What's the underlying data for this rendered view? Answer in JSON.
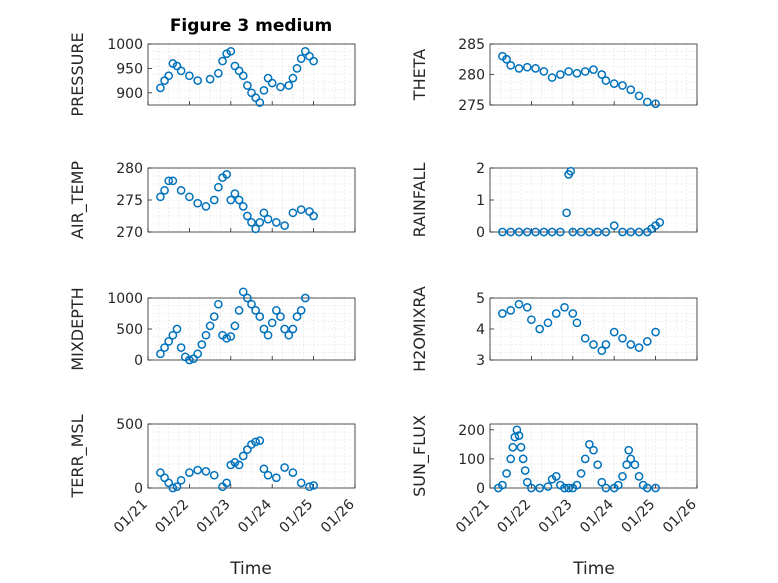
{
  "title": "Figure 3 medium",
  "colors": {
    "marker": "#0072BD",
    "axis": "#262626",
    "grid": "#d0d0d0"
  },
  "chart_data": [
    {
      "type": "scatter",
      "title": "Figure 3 medium",
      "ylabel": "PRESSURE",
      "ylim": [
        875,
        1000
      ],
      "yticks": [
        900,
        950,
        1000
      ],
      "xlim": [
        "01/21",
        "01/26"
      ],
      "xticks": [
        "01/21",
        "01/22",
        "01/23",
        "01/24",
        "01/25",
        "01/26"
      ],
      "grid": true,
      "series": [
        {
          "values": [
            [
              21.3,
              910
            ],
            [
              21.4,
              925
            ],
            [
              21.5,
              935
            ],
            [
              21.6,
              960
            ],
            [
              21.7,
              955
            ],
            [
              21.8,
              945
            ],
            [
              22.0,
              935
            ],
            [
              22.2,
              925
            ],
            [
              22.5,
              928
            ],
            [
              22.7,
              940
            ],
            [
              22.8,
              965
            ],
            [
              22.9,
              980
            ],
            [
              23.0,
              985
            ],
            [
              23.1,
              955
            ],
            [
              23.2,
              945
            ],
            [
              23.3,
              935
            ],
            [
              23.4,
              915
            ],
            [
              23.5,
              900
            ],
            [
              23.6,
              890
            ],
            [
              23.7,
              880
            ],
            [
              23.8,
              905
            ],
            [
              23.9,
              930
            ],
            [
              24.0,
              920
            ],
            [
              24.2,
              912
            ],
            [
              24.4,
              915
            ],
            [
              24.5,
              930
            ],
            [
              24.6,
              950
            ],
            [
              24.7,
              970
            ],
            [
              24.8,
              985
            ],
            [
              24.9,
              975
            ],
            [
              25.0,
              965
            ]
          ]
        }
      ]
    },
    {
      "type": "scatter",
      "ylabel": "THETA",
      "ylim": [
        275,
        285
      ],
      "yticks": [
        275,
        280,
        285
      ],
      "xlim": [
        "01/21",
        "01/26"
      ],
      "xticks": [
        "01/21",
        "01/22",
        "01/23",
        "01/24",
        "01/25",
        "01/26"
      ],
      "grid": true,
      "series": [
        {
          "values": [
            [
              21.3,
              283
            ],
            [
              21.4,
              282.5
            ],
            [
              21.5,
              281.5
            ],
            [
              21.7,
              281
            ],
            [
              21.9,
              281.2
            ],
            [
              22.1,
              281
            ],
            [
              22.3,
              280.5
            ],
            [
              22.5,
              279.5
            ],
            [
              22.7,
              280
            ],
            [
              22.9,
              280.5
            ],
            [
              23.1,
              280.2
            ],
            [
              23.3,
              280.5
            ],
            [
              23.5,
              280.8
            ],
            [
              23.7,
              280
            ],
            [
              23.8,
              279
            ],
            [
              24.0,
              278.5
            ],
            [
              24.2,
              278.2
            ],
            [
              24.4,
              277.5
            ],
            [
              24.6,
              276.5
            ],
            [
              24.8,
              275.5
            ],
            [
              25.0,
              275.2
            ]
          ]
        }
      ]
    },
    {
      "type": "scatter",
      "ylabel": "AIR_TEMP",
      "ylim": [
        270,
        280
      ],
      "yticks": [
        270,
        275,
        280
      ],
      "xlim": [
        "01/21",
        "01/26"
      ],
      "xticks": [
        "01/21",
        "01/22",
        "01/23",
        "01/24",
        "01/25",
        "01/26"
      ],
      "grid": true,
      "series": [
        {
          "values": [
            [
              21.3,
              275.5
            ],
            [
              21.4,
              276.5
            ],
            [
              21.5,
              278
            ],
            [
              21.6,
              278
            ],
            [
              21.8,
              276.5
            ],
            [
              22.0,
              275.5
            ],
            [
              22.2,
              274.5
            ],
            [
              22.4,
              274
            ],
            [
              22.6,
              275
            ],
            [
              22.7,
              277
            ],
            [
              22.8,
              278.5
            ],
            [
              22.9,
              279
            ],
            [
              23.0,
              275
            ],
            [
              23.1,
              276
            ],
            [
              23.2,
              275
            ],
            [
              23.3,
              274
            ],
            [
              23.4,
              272.5
            ],
            [
              23.5,
              271.5
            ],
            [
              23.6,
              270.5
            ],
            [
              23.7,
              271.5
            ],
            [
              23.8,
              273
            ],
            [
              23.9,
              272
            ],
            [
              24.1,
              271.5
            ],
            [
              24.3,
              271
            ],
            [
              24.5,
              273
            ],
            [
              24.7,
              273.5
            ],
            [
              24.9,
              273.2
            ],
            [
              25.0,
              272.5
            ]
          ]
        }
      ]
    },
    {
      "type": "scatter",
      "ylabel": "RAINFALL",
      "ylim": [
        0,
        2
      ],
      "yticks": [
        0,
        1,
        2
      ],
      "xlim": [
        "01/21",
        "01/26"
      ],
      "xticks": [
        "01/21",
        "01/22",
        "01/23",
        "01/24",
        "01/25",
        "01/26"
      ],
      "grid": true,
      "series": [
        {
          "values": [
            [
              21.3,
              0
            ],
            [
              21.5,
              0
            ],
            [
              21.7,
              0
            ],
            [
              21.9,
              0
            ],
            [
              22.1,
              0
            ],
            [
              22.3,
              0
            ],
            [
              22.5,
              0
            ],
            [
              22.7,
              0
            ],
            [
              22.85,
              0.6
            ],
            [
              22.9,
              1.8
            ],
            [
              22.95,
              1.9
            ],
            [
              23.0,
              0
            ],
            [
              23.2,
              0
            ],
            [
              23.4,
              0
            ],
            [
              23.6,
              0
            ],
            [
              23.8,
              0
            ],
            [
              24.0,
              0.2
            ],
            [
              24.2,
              0
            ],
            [
              24.4,
              0
            ],
            [
              24.6,
              0
            ],
            [
              24.8,
              0
            ],
            [
              24.9,
              0.1
            ],
            [
              25.0,
              0.2
            ],
            [
              25.1,
              0.3
            ]
          ]
        }
      ]
    },
    {
      "type": "scatter",
      "ylabel": "MIXDEPTH",
      "ylim": [
        0,
        1000
      ],
      "yticks": [
        0,
        500,
        1000
      ],
      "xlim": [
        "01/21",
        "01/26"
      ],
      "xticks": [
        "01/21",
        "01/22",
        "01/23",
        "01/24",
        "01/25",
        "01/26"
      ],
      "grid": true,
      "series": [
        {
          "values": [
            [
              21.3,
              100
            ],
            [
              21.4,
              200
            ],
            [
              21.5,
              300
            ],
            [
              21.6,
              400
            ],
            [
              21.7,
              500
            ],
            [
              21.8,
              200
            ],
            [
              21.9,
              50
            ],
            [
              22.0,
              0
            ],
            [
              22.1,
              20
            ],
            [
              22.2,
              100
            ],
            [
              22.3,
              250
            ],
            [
              22.4,
              400
            ],
            [
              22.5,
              550
            ],
            [
              22.6,
              700
            ],
            [
              22.7,
              900
            ],
            [
              22.8,
              400
            ],
            [
              22.9,
              350
            ],
            [
              23.0,
              380
            ],
            [
              23.1,
              550
            ],
            [
              23.2,
              800
            ],
            [
              23.3,
              1100
            ],
            [
              23.4,
              1000
            ],
            [
              23.5,
              900
            ],
            [
              23.6,
              800
            ],
            [
              23.7,
              700
            ],
            [
              23.8,
              500
            ],
            [
              23.9,
              400
            ],
            [
              24.0,
              600
            ],
            [
              24.1,
              800
            ],
            [
              24.2,
              700
            ],
            [
              24.3,
              500
            ],
            [
              24.4,
              400
            ],
            [
              24.5,
              500
            ],
            [
              24.6,
              700
            ],
            [
              24.7,
              800
            ],
            [
              24.8,
              1000
            ]
          ]
        }
      ]
    },
    {
      "type": "scatter",
      "ylabel": "H2OMIXRA",
      "ylim": [
        3,
        5
      ],
      "yticks": [
        3,
        4,
        5
      ],
      "xlim": [
        "01/21",
        "01/26"
      ],
      "xticks": [
        "01/21",
        "01/22",
        "01/23",
        "01/24",
        "01/25",
        "01/26"
      ],
      "grid": true,
      "series": [
        {
          "values": [
            [
              21.3,
              4.5
            ],
            [
              21.5,
              4.6
            ],
            [
              21.7,
              4.8
            ],
            [
              21.9,
              4.7
            ],
            [
              22.0,
              4.3
            ],
            [
              22.2,
              4.0
            ],
            [
              22.4,
              4.2
            ],
            [
              22.6,
              4.5
            ],
            [
              22.8,
              4.7
            ],
            [
              23.0,
              4.5
            ],
            [
              23.1,
              4.2
            ],
            [
              23.3,
              3.7
            ],
            [
              23.5,
              3.5
            ],
            [
              23.7,
              3.3
            ],
            [
              23.8,
              3.5
            ],
            [
              24.0,
              3.9
            ],
            [
              24.2,
              3.7
            ],
            [
              24.4,
              3.5
            ],
            [
              24.6,
              3.4
            ],
            [
              24.8,
              3.6
            ],
            [
              25.0,
              3.9
            ]
          ]
        }
      ]
    },
    {
      "type": "scatter",
      "ylabel": "TERR_MSL",
      "ylim": [
        0,
        500
      ],
      "yticks": [
        0,
        500
      ],
      "xlim": [
        "01/21",
        "01/26"
      ],
      "xticks": [
        "01/21",
        "01/22",
        "01/23",
        "01/24",
        "01/25",
        "01/26"
      ],
      "grid": true,
      "series": [
        {
          "values": [
            [
              21.3,
              120
            ],
            [
              21.4,
              80
            ],
            [
              21.5,
              40
            ],
            [
              21.6,
              0
            ],
            [
              21.7,
              10
            ],
            [
              21.8,
              60
            ],
            [
              22.0,
              120
            ],
            [
              22.2,
              140
            ],
            [
              22.4,
              130
            ],
            [
              22.6,
              100
            ],
            [
              22.8,
              10
            ],
            [
              22.9,
              40
            ],
            [
              23.0,
              180
            ],
            [
              23.1,
              200
            ],
            [
              23.2,
              180
            ],
            [
              23.3,
              250
            ],
            [
              23.4,
              300
            ],
            [
              23.5,
              340
            ],
            [
              23.6,
              360
            ],
            [
              23.7,
              370
            ],
            [
              23.8,
              150
            ],
            [
              23.9,
              100
            ],
            [
              24.1,
              80
            ],
            [
              24.3,
              160
            ],
            [
              24.5,
              120
            ],
            [
              24.7,
              40
            ],
            [
              24.9,
              10
            ],
            [
              25.0,
              20
            ]
          ]
        }
      ]
    },
    {
      "type": "scatter",
      "ylabel": "SUN_FLUX",
      "ylim": [
        0,
        220
      ],
      "yticks": [
        0,
        100,
        200
      ],
      "xlim": [
        "01/21",
        "01/26"
      ],
      "xticks": [
        "01/21",
        "01/22",
        "01/23",
        "01/24",
        "01/25",
        "01/26"
      ],
      "grid": true,
      "series": [
        {
          "values": [
            [
              21.2,
              0
            ],
            [
              21.3,
              10
            ],
            [
              21.4,
              50
            ],
            [
              21.5,
              100
            ],
            [
              21.55,
              140
            ],
            [
              21.6,
              175
            ],
            [
              21.65,
              200
            ],
            [
              21.7,
              180
            ],
            [
              21.75,
              140
            ],
            [
              21.8,
              100
            ],
            [
              21.85,
              60
            ],
            [
              21.9,
              20
            ],
            [
              22.0,
              0
            ],
            [
              22.2,
              0
            ],
            [
              22.4,
              5
            ],
            [
              22.5,
              30
            ],
            [
              22.6,
              40
            ],
            [
              22.7,
              10
            ],
            [
              22.8,
              0
            ],
            [
              22.9,
              0
            ],
            [
              23.0,
              0
            ],
            [
              23.1,
              10
            ],
            [
              23.2,
              50
            ],
            [
              23.3,
              100
            ],
            [
              23.4,
              150
            ],
            [
              23.5,
              130
            ],
            [
              23.6,
              80
            ],
            [
              23.7,
              20
            ],
            [
              23.8,
              0
            ],
            [
              24.0,
              0
            ],
            [
              24.1,
              10
            ],
            [
              24.2,
              40
            ],
            [
              24.3,
              80
            ],
            [
              24.35,
              130
            ],
            [
              24.4,
              100
            ],
            [
              24.5,
              80
            ],
            [
              24.6,
              40
            ],
            [
              24.7,
              10
            ],
            [
              24.8,
              0
            ],
            [
              25.0,
              0
            ]
          ]
        }
      ]
    }
  ],
  "xlabel": "Time"
}
